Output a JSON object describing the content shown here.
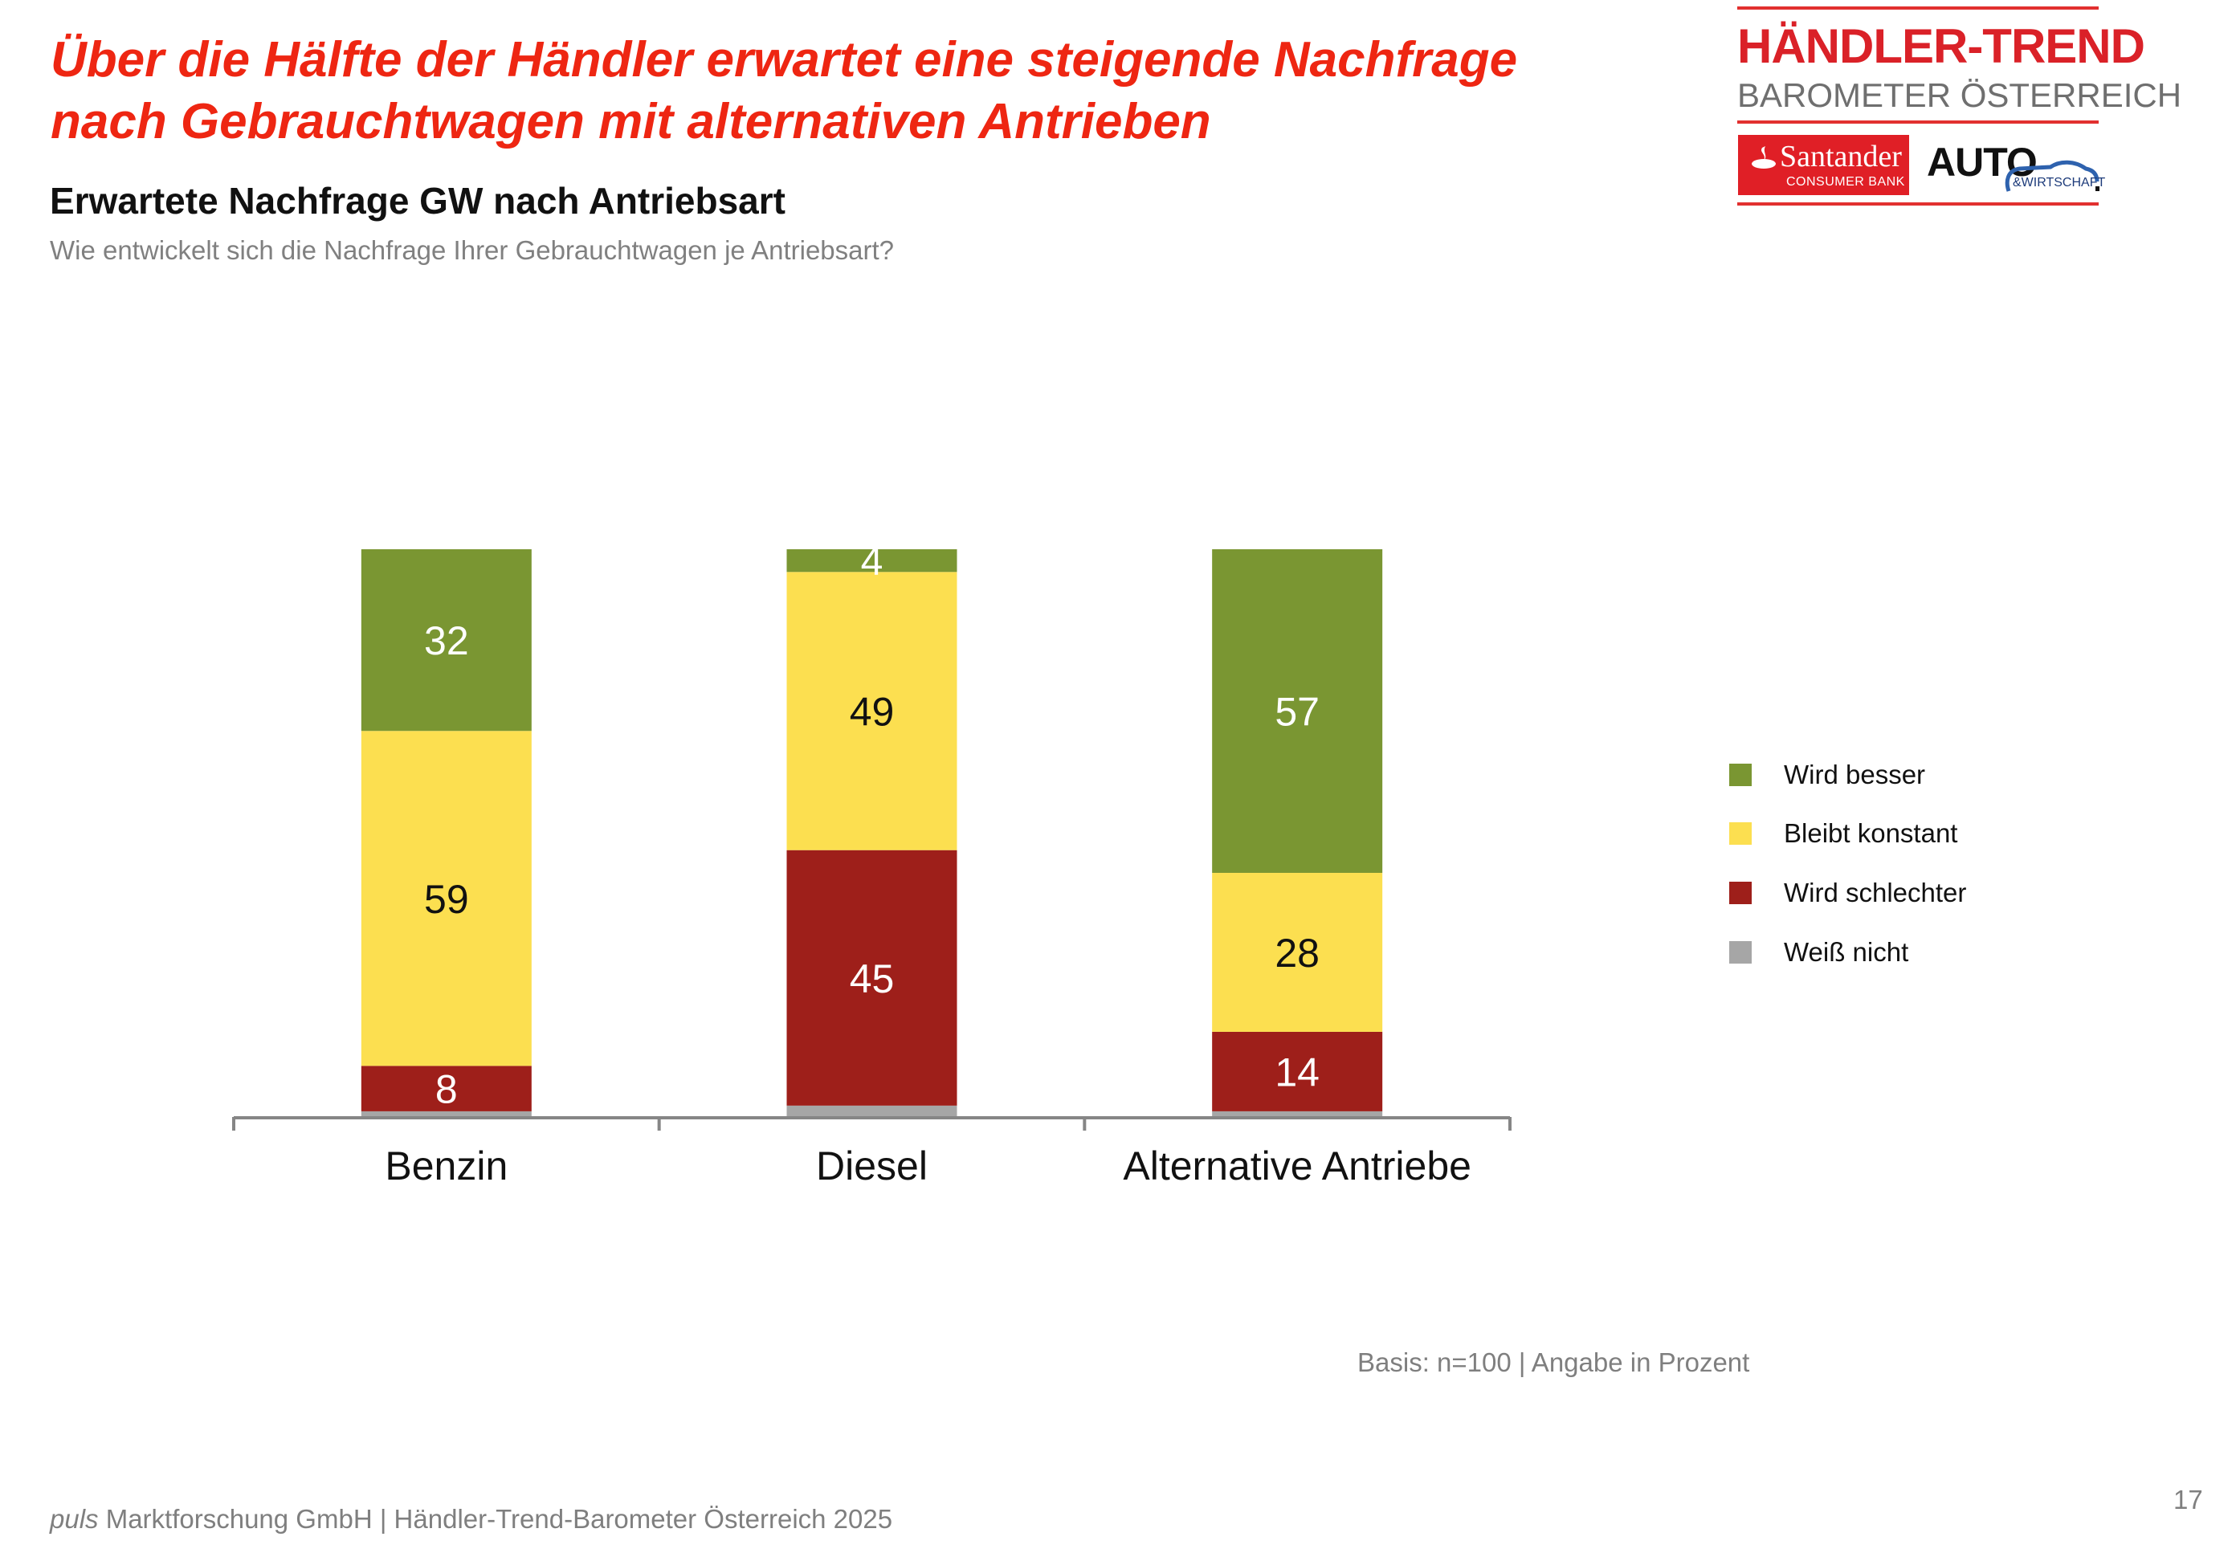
{
  "slide": {
    "headline_line1": "Über die Hälfte der Händler erwartet eine steigende Nachfrage",
    "headline_line2": "nach Gebrauchtwagen mit alternativen Antrieben",
    "subtitle": "Erwartete Nachfrage GW nach Antriebsart",
    "question": "Wie entwickelt sich die Nachfrage Ihrer Gebrauchtwagen je Antriebsart?",
    "basis": "Basis: n=100 | Angabe in Prozent",
    "footer_brand": "puls",
    "footer_text": " Marktforschung GmbH | Händler-Trend-Barometer Österreich 2025",
    "page_number": "17"
  },
  "logo": {
    "title": "HÄNDLER-TREND",
    "subtitle": "BAROMETER ÖSTERREICH",
    "santander_name": "Santander",
    "santander_tagline": "CONSUMER BANK",
    "auto_text": "AUTO",
    "auto_tagline": "&WIRTSCHAFT",
    "colors": {
      "red": "#DA2128",
      "gray": "#6F6F6F",
      "blue": "#2E62AE"
    }
  },
  "chart_data": {
    "type": "bar",
    "stacked": true,
    "orientation": "vertical",
    "title": "Erwartete Nachfrage GW nach Antriebsart",
    "xlabel": "",
    "ylabel": "",
    "ylim": [
      0,
      100
    ],
    "unit": "%",
    "grid": false,
    "legend_position": "right",
    "categories": [
      "Benzin",
      "Diesel",
      "Alternative Antriebe"
    ],
    "series": [
      {
        "name": "Wird besser",
        "color": "#7A9632",
        "label_color": "#FFFFFF",
        "values": [
          32,
          4,
          57
        ]
      },
      {
        "name": "Bleibt konstant",
        "color": "#FCDF50",
        "label_color": "#111111",
        "values": [
          59,
          49,
          28
        ]
      },
      {
        "name": "Wird schlechter",
        "color": "#9E1F1A",
        "label_color": "#FFFFFF",
        "values": [
          8,
          45,
          14
        ]
      },
      {
        "name": "Weiß nicht",
        "color": "#A6A6A6",
        "label_color": "#FFFFFF",
        "values": [
          1,
          2,
          1
        ],
        "labels_shown": false
      }
    ],
    "legend": [
      "Wird besser",
      "Bleibt konstant",
      "Wird schlechter",
      "Weiß nicht"
    ],
    "axis_color": "#868686"
  }
}
